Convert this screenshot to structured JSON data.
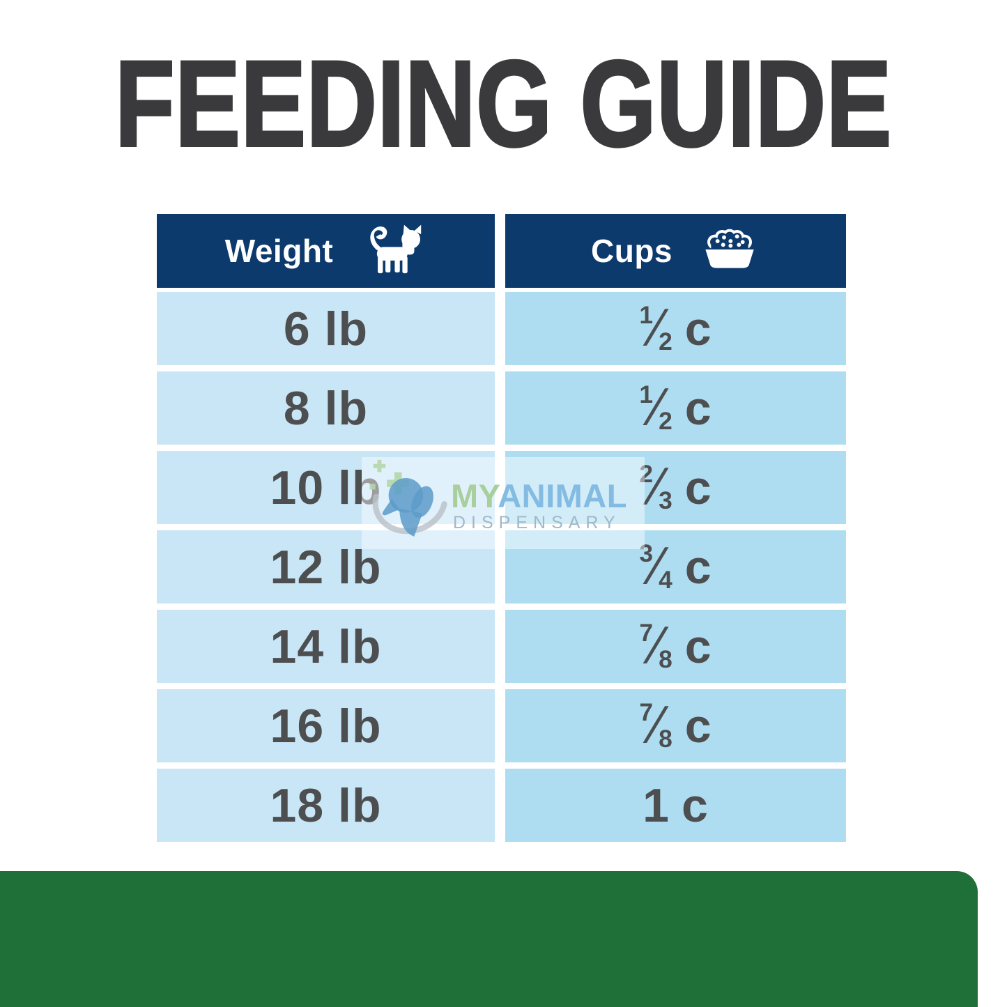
{
  "title": "FEEDING GUIDE",
  "table": {
    "columns": [
      {
        "label": "Weight",
        "icon": "cat-icon"
      },
      {
        "label": "Cups",
        "icon": "food-bowl-icon"
      }
    ],
    "rows": [
      {
        "weight": "6 lb",
        "cups": {
          "num": "1",
          "den": "2",
          "unit": "c"
        }
      },
      {
        "weight": "8 lb",
        "cups": {
          "num": "1",
          "den": "2",
          "unit": "c"
        }
      },
      {
        "weight": "10 lb",
        "cups": {
          "num": "2",
          "den": "3",
          "unit": "c"
        }
      },
      {
        "weight": "12 lb",
        "cups": {
          "num": "3",
          "den": "4",
          "unit": "c"
        }
      },
      {
        "weight": "14 lb",
        "cups": {
          "num": "7",
          "den": "8",
          "unit": "c"
        }
      },
      {
        "weight": "16 lb",
        "cups": {
          "num": "7",
          "den": "8",
          "unit": "c"
        }
      },
      {
        "weight": "18 lb",
        "cups": {
          "whole": "1",
          "unit": "c"
        }
      }
    ]
  },
  "chart_data": {
    "type": "table",
    "title": "FEEDING GUIDE",
    "columns": [
      "Weight",
      "Cups"
    ],
    "rows": [
      [
        "6 lb",
        "1/2 c"
      ],
      [
        "8 lb",
        "1/2 c"
      ],
      [
        "10 lb",
        "2/3 c"
      ],
      [
        "12 lb",
        "3/4 c"
      ],
      [
        "14 lb",
        "7/8 c"
      ],
      [
        "16 lb",
        "7/8 c"
      ],
      [
        "18 lb",
        "1 c"
      ]
    ]
  },
  "glyphs": {
    "fraction_slash": "⁄"
  },
  "watermark": {
    "brand_my": "MY",
    "brand_animal": "ANIMAL",
    "brand_sub": "DISPENSARY"
  },
  "colors": {
    "header_navy": "#0d3a6d",
    "row_left_blue": "#c9e6f7",
    "row_right_blue": "#aeddf2",
    "title_gray": "#3a3a3c",
    "cell_text_gray": "#4d4e50",
    "accent_green": "#1f7038"
  }
}
